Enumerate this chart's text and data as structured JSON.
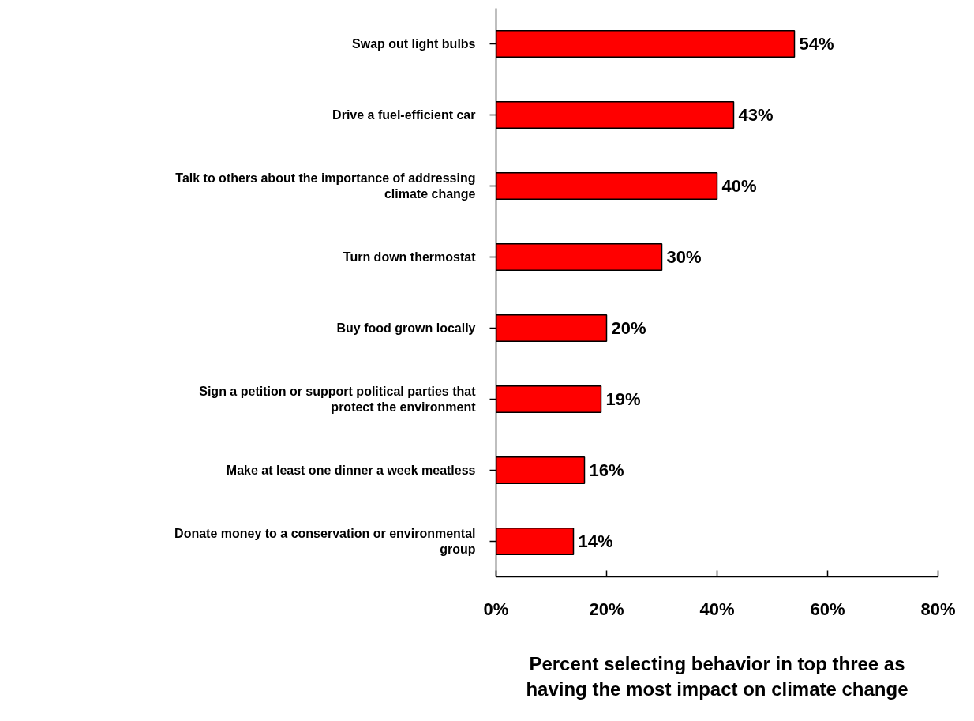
{
  "chart_data": {
    "type": "bar",
    "orientation": "horizontal",
    "xlabel": "Percent selecting behavior in top three as having the most impact on climate change",
    "categories": [
      "Swap out light bulbs",
      "Drive a fuel-efficient car",
      "Talk to others about the importance of addressing climate change",
      "Turn down thermostat",
      "Buy food grown locally",
      "Sign a petition or support political parties that protect the environment",
      "Make at least one dinner a week meatless",
      "Donate money to a conservation or environmental group"
    ],
    "values": [
      54,
      43,
      40,
      30,
      20,
      19,
      16,
      14
    ],
    "value_labels": [
      "54%",
      "43%",
      "40%",
      "30%",
      "20%",
      "19%",
      "16%",
      "14%"
    ],
    "color": "#ff0000",
    "xlim": [
      0,
      80
    ],
    "xticks": [
      {
        "value": 0,
        "label": "0%"
      },
      {
        "value": 20,
        "label": "20%"
      },
      {
        "value": 40,
        "label": "40%"
      },
      {
        "value": 60,
        "label": "60%"
      },
      {
        "value": 80,
        "label": "80%"
      }
    ],
    "grid": false
  }
}
